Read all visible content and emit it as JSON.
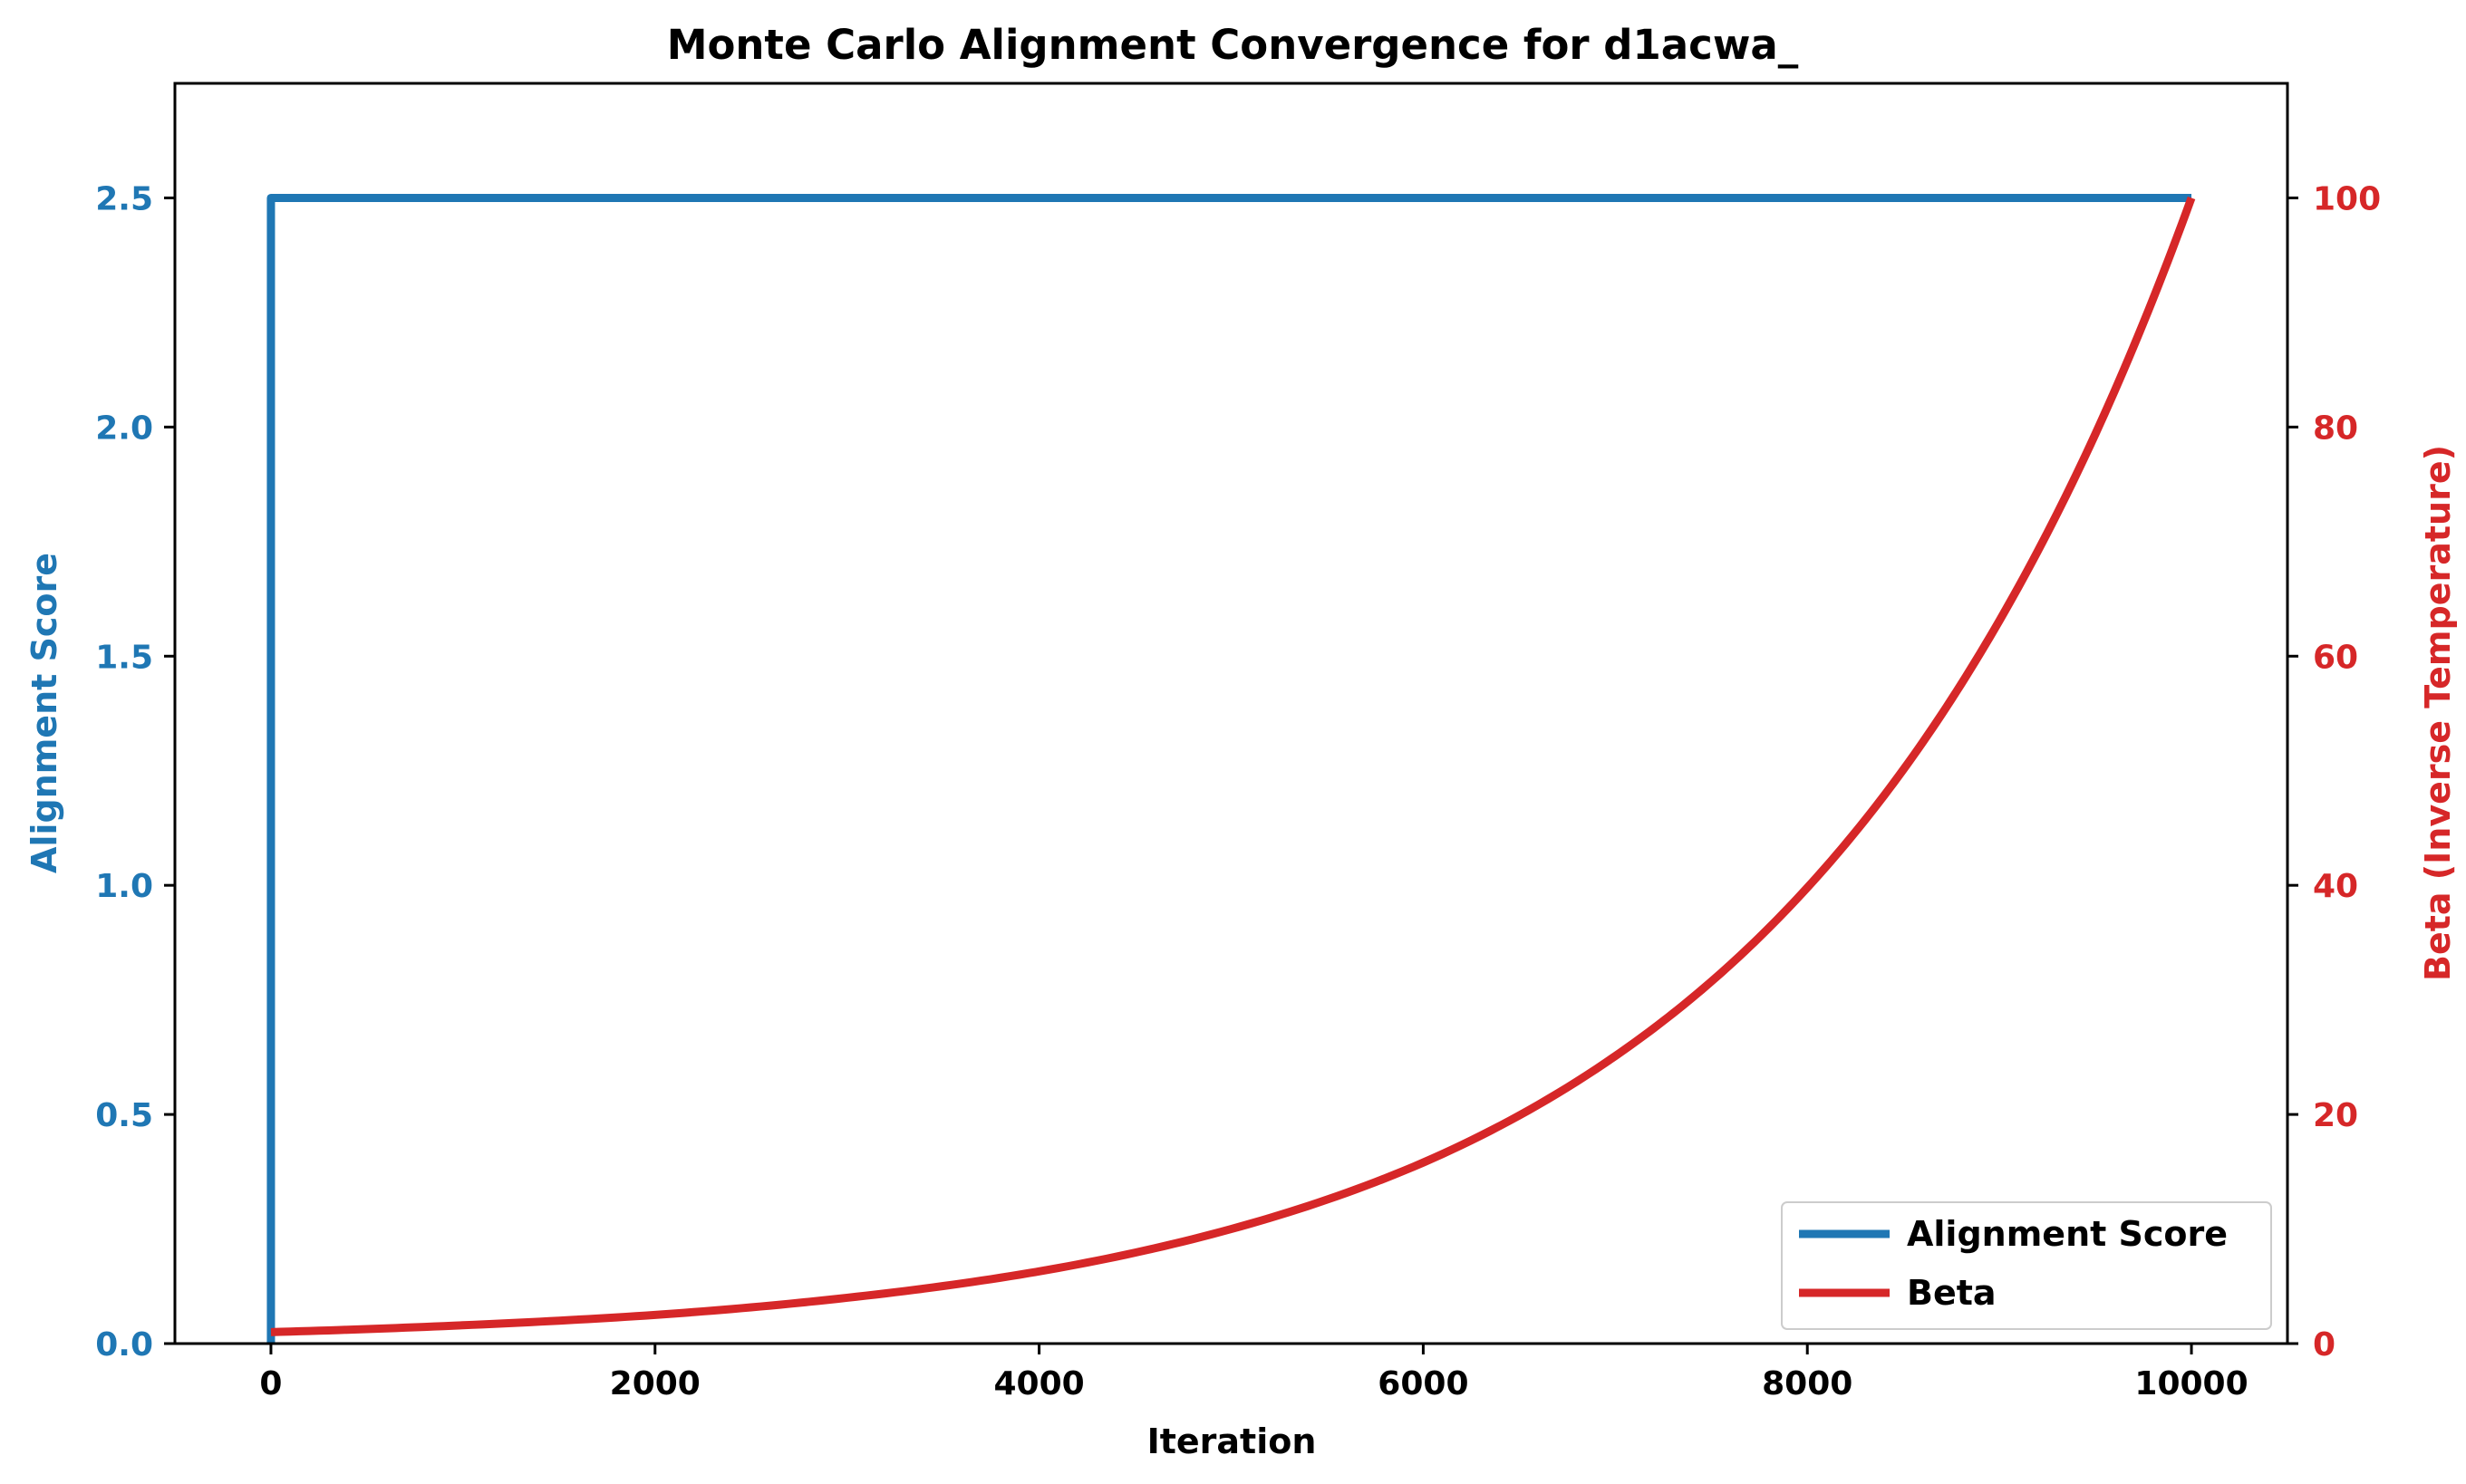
{
  "chart_data": {
    "type": "line",
    "title": "Monte Carlo Alignment Convergence for d1acwa_",
    "xlabel": "Iteration",
    "ylabel_left": "Alignment Score",
    "ylabel_right": "Beta (Inverse Temperature)",
    "xlim": [
      -500,
      10500
    ],
    "ylim_left": [
      0,
      2.75
    ],
    "ylim_right": [
      0,
      110
    ],
    "x_ticks": [
      0,
      2000,
      4000,
      6000,
      8000,
      10000
    ],
    "y_left_ticks": [
      0.0,
      0.5,
      1.0,
      1.5,
      2.0,
      2.5
    ],
    "y_right_ticks": [
      0,
      20,
      40,
      60,
      80,
      100
    ],
    "grid": false,
    "legend_position": "lower-right",
    "colors": {
      "alignment": "#1f77b4",
      "beta": "#d62728",
      "axes": "#000000"
    },
    "series": [
      {
        "name": "Alignment Score",
        "axis": "left",
        "x": [
          0,
          0,
          10000
        ],
        "y": [
          0.0,
          2.5,
          2.5
        ]
      },
      {
        "name": "Beta",
        "axis": "right",
        "x": [
          0,
          1000,
          2000,
          3000,
          4000,
          5000,
          6000,
          7000,
          7500,
          8000,
          8500,
          9000,
          9500,
          10000
        ],
        "y": [
          1.0,
          1.6,
          2.5,
          4.0,
          6.3,
          10.0,
          15.8,
          25.1,
          31.6,
          39.8,
          50.1,
          63.1,
          79.4,
          100.0
        ]
      }
    ]
  }
}
